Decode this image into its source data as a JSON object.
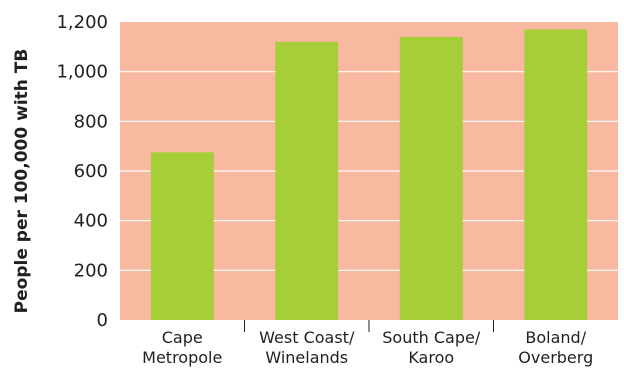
{
  "chart_data": {
    "type": "bar",
    "title": "",
    "xlabel": "",
    "ylabel": "People per 100,000 with TB",
    "categories": [
      [
        "Cape",
        "Metropole"
      ],
      [
        "West Coast/",
        "Winelands"
      ],
      [
        "South Cape/",
        "Karoo"
      ],
      [
        "Boland/",
        "Overberg"
      ]
    ],
    "values": [
      675,
      1120,
      1140,
      1170
    ],
    "ylim": [
      0,
      1200
    ],
    "yticks": [
      0,
      200,
      400,
      600,
      800,
      1000,
      1200
    ],
    "ytick_labels": [
      "0",
      "200",
      "400",
      "600",
      "800",
      "1,000",
      "1,200"
    ],
    "grid": true,
    "legend": "none",
    "colors": {
      "bar": "#a6ce39",
      "plot_background": "#f9b9a1",
      "gridline": "#ffffff",
      "text": "#231f20"
    }
  }
}
